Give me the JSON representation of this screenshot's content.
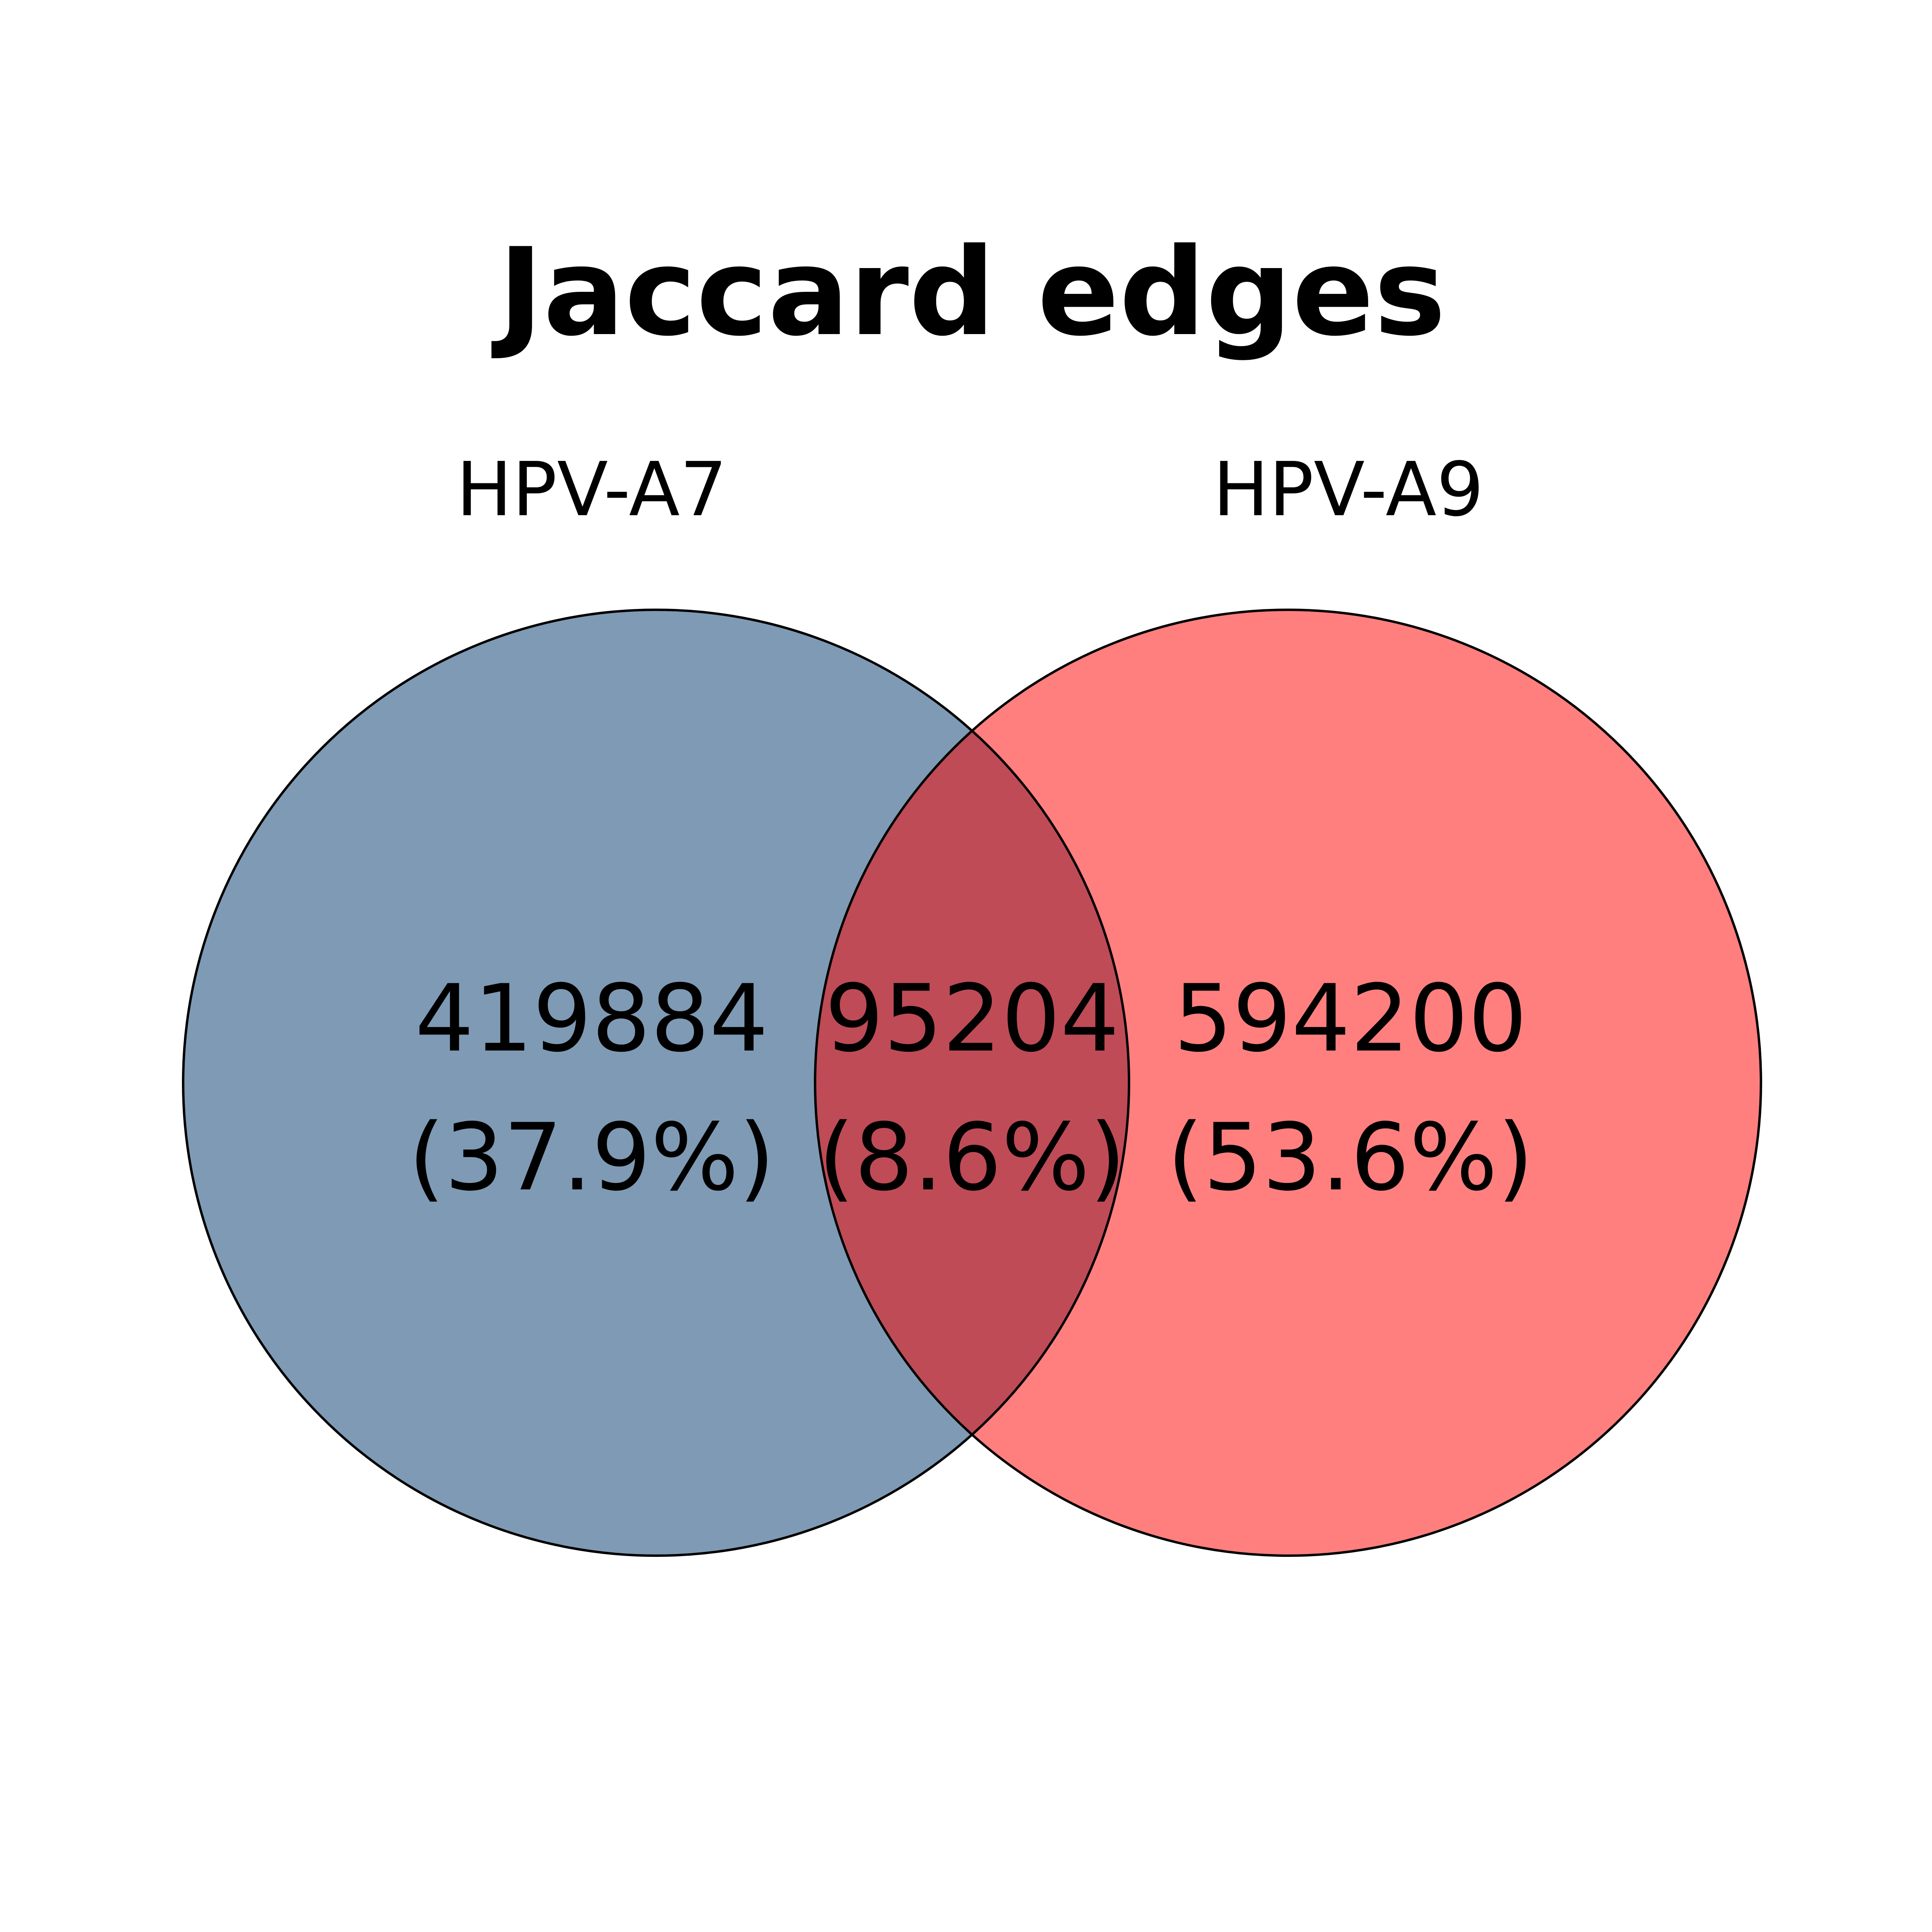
{
  "title": "Jaccard edges",
  "sets": [
    {
      "name": "HPV-A7",
      "color": "#4B6D91"
    },
    {
      "name": "HPV-A9",
      "color": "#FF0000"
    }
  ],
  "colors": {
    "left_only": "#7F9AB4",
    "right_only": "#FF7F7F",
    "intersection": "#BF4B57",
    "outline": "#000000",
    "background": "#FFFFFF"
  },
  "regions": {
    "left_only": {
      "count": "419884",
      "percent": "(37.9%)"
    },
    "intersection": {
      "count": "95204",
      "percent": "(8.6%)"
    },
    "right_only": {
      "count": "594200",
      "percent": "(53.6%)"
    }
  }
}
